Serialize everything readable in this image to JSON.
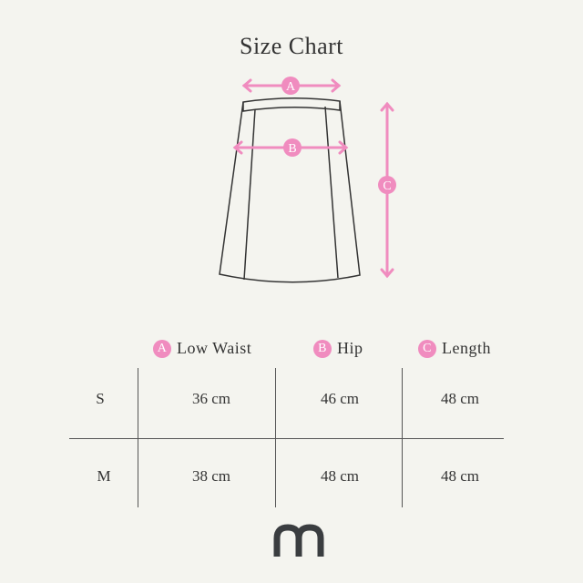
{
  "title": "Size Chart",
  "colors": {
    "accent": "#f08cbf",
    "line": "#333333",
    "logo": "#3a3d40",
    "background": "#f4f4ef"
  },
  "diagram": {
    "markers": [
      "A",
      "B",
      "C"
    ]
  },
  "table": {
    "columns": [
      {
        "badge": "A",
        "label": "Low Waist"
      },
      {
        "badge": "B",
        "label": "Hip"
      },
      {
        "badge": "C",
        "label": "Length"
      }
    ],
    "rows": [
      {
        "size": "S",
        "values": [
          "36 cm",
          "46 cm",
          "48 cm"
        ]
      },
      {
        "size": "M",
        "values": [
          "38 cm",
          "48 cm",
          "48 cm"
        ]
      }
    ]
  },
  "logo": "m"
}
